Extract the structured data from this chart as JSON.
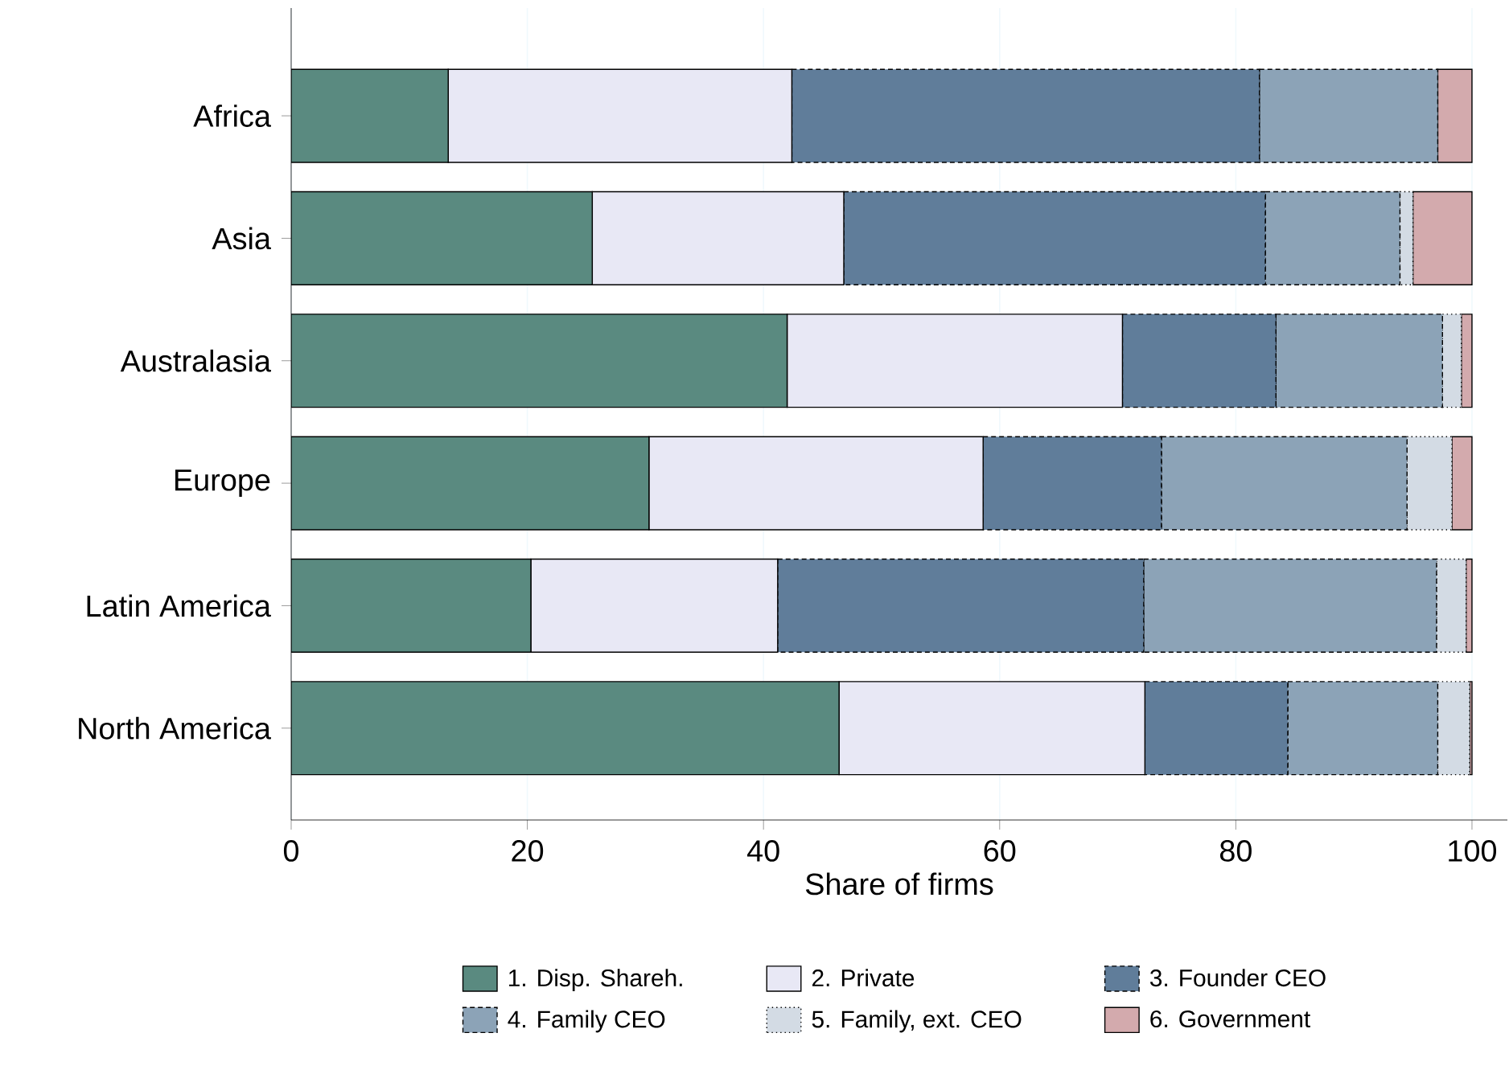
{
  "chart_data": {
    "type": "bar",
    "orientation": "horizontal",
    "stacked": true,
    "categories": [
      "Africa",
      "Asia",
      "Australasia",
      "Europe",
      "Latin America",
      "North America"
    ],
    "xlabel": "Share of firms",
    "xlim": [
      0,
      103
    ],
    "xticks": [
      0,
      20,
      40,
      60,
      80,
      100
    ],
    "grid": "x",
    "legend": "bottom",
    "series": [
      {
        "name": "1. Disp. Shareh.",
        "color": "#5a8a80",
        "line_style": "solid",
        "values": [
          13.3,
          25.5,
          42.0,
          30.3,
          20.3,
          46.4
        ]
      },
      {
        "name": "2. Private",
        "color": "#e8e8f5",
        "line_style": "solid",
        "values": [
          29.1,
          21.3,
          28.4,
          28.3,
          20.9,
          25.9
        ]
      },
      {
        "name": "3. Founder CEO",
        "color": "#607d9a",
        "line_style": "dashed",
        "values": [
          39.6,
          35.7,
          13.0,
          15.1,
          31.0,
          12.1
        ]
      },
      {
        "name": "4. Family CEO",
        "color": "#8ca3b7",
        "line_style": "dashed",
        "values": [
          15.1,
          11.4,
          14.1,
          20.8,
          24.8,
          12.7
        ]
      },
      {
        "name": "5. Family, ext. CEO",
        "color": "#d3dbe4",
        "line_style": "dotted",
        "values": [
          0,
          1.1,
          1.6,
          3.8,
          2.5,
          2.7
        ]
      },
      {
        "name": "6. Government",
        "color": "#d3aaad",
        "line_style": "solid",
        "values": [
          2.9,
          5.0,
          0.9,
          1.7,
          0.5,
          0.2
        ]
      }
    ]
  }
}
